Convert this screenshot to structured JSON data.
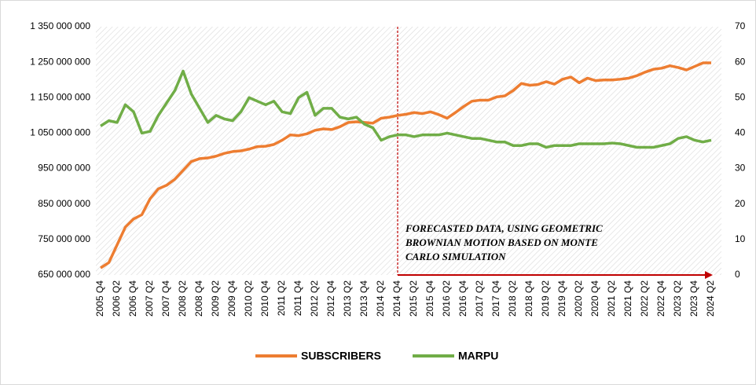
{
  "chart_data": {
    "type": "line",
    "categories": [
      "2005 Q4",
      null,
      "2006 Q2",
      null,
      "2006 Q4",
      null,
      "2007 Q2",
      null,
      "2007 Q4",
      null,
      "2008 Q2",
      null,
      "2008 Q4",
      null,
      "2009 Q2",
      null,
      "2009 Q4",
      null,
      "2010 Q2",
      null,
      "2010 Q4",
      null,
      "2011 Q2",
      null,
      "2011 Q4",
      null,
      "2012 Q2",
      null,
      "2012 Q4",
      null,
      "2013 Q2",
      null,
      "2013 Q4",
      null,
      "2014 Q2",
      null,
      "2014 Q4",
      null,
      "2015 Q2",
      null,
      "2015 Q4",
      null,
      "2016 Q2",
      null,
      "2016 Q4",
      null,
      "2017 Q2",
      null,
      "2017 Q4",
      null,
      "2018 Q2",
      null,
      "2018 Q4",
      null,
      "2019 Q2",
      null,
      "2019 Q4",
      null,
      "2020 Q2",
      null,
      "2020 Q4",
      null,
      "2021 Q2",
      null,
      "2021 Q4",
      null,
      "2022 Q2",
      null,
      "2022 Q4",
      null,
      "2023 Q2",
      null,
      "2023 Q4",
      null,
      "2024 Q2"
    ],
    "series": [
      {
        "name": "SUBSCRIBERS",
        "color": "#ed7d31",
        "values": [
          670000000,
          685000000,
          735000000,
          785000000,
          808000000,
          820000000,
          865000000,
          893000000,
          903000000,
          920000000,
          945000000,
          970000000,
          978000000,
          980000000,
          985000000,
          993000000,
          998000000,
          1000000000,
          1005000000,
          1012000000,
          1013000000,
          1018000000,
          1030000000,
          1045000000,
          1043000000,
          1048000000,
          1058000000,
          1062000000,
          1060000000,
          1068000000,
          1080000000,
          1082000000,
          1080000000,
          1078000000,
          1092000000,
          1095000000,
          1100000000,
          1103000000,
          1108000000,
          1105000000,
          1110000000,
          1102000000,
          1092000000,
          1108000000,
          1125000000,
          1140000000,
          1143000000,
          1143000000,
          1152000000,
          1155000000,
          1170000000,
          1190000000,
          1185000000,
          1187000000,
          1195000000,
          1188000000,
          1202000000,
          1208000000,
          1192000000,
          1205000000,
          1198000000,
          1200000000,
          1200000000,
          1202000000,
          1205000000,
          1212000000,
          1222000000,
          1230000000,
          1233000000,
          1240000000,
          1235000000,
          1228000000,
          1238000000,
          1248000000,
          1248000000
        ]
      },
      {
        "name": "MARPU",
        "color": "#70ad47",
        "axis": "y2",
        "values": [
          42,
          43.5,
          43,
          48,
          46,
          40,
          40.5,
          45,
          48.5,
          52,
          57.5,
          51,
          47,
          43,
          45,
          44,
          43.5,
          46,
          50,
          49,
          48,
          49,
          46,
          45.5,
          50,
          51.5,
          45,
          47,
          47,
          44.5,
          44,
          44.5,
          42.5,
          41.5,
          38,
          39,
          39.5,
          39.5,
          39,
          39.5,
          39.5,
          39.5,
          40,
          39.5,
          39,
          38.5,
          38.5,
          38,
          37.5,
          37.5,
          36.5,
          36.5,
          37,
          37,
          36,
          36.5,
          36.5,
          36.5,
          37,
          37,
          37,
          37,
          37.2,
          37,
          36.5,
          36,
          36,
          36,
          36.5,
          37,
          38.5,
          39,
          38,
          37.5,
          38
        ]
      }
    ],
    "ylim": [
      650000000,
      1350000000
    ],
    "yticks": [
      {
        "value": 650000000,
        "label": "650 000 000"
      },
      {
        "value": 750000000,
        "label": "750 000 000"
      },
      {
        "value": 850000000,
        "label": "850 000 000"
      },
      {
        "value": 950000000,
        "label": "950 000 000"
      },
      {
        "value": 1050000000,
        "label": "1 050 000 000"
      },
      {
        "value": 1150000000,
        "label": "1 150 000 000"
      },
      {
        "value": 1250000000,
        "label": "1 250 000 000"
      },
      {
        "value": 1350000000,
        "label": "1 350 000 000"
      }
    ],
    "y2lim": [
      0,
      70
    ],
    "y2ticks": [
      0,
      10,
      20,
      30,
      40,
      50,
      60,
      70
    ],
    "annotation": [
      "FORECASTED DATA, USING GEOMETRIC",
      "BROWNIAN MOTION BASED ON MONTE",
      "CARLO SIMULATION"
    ],
    "legend": "bottom"
  }
}
